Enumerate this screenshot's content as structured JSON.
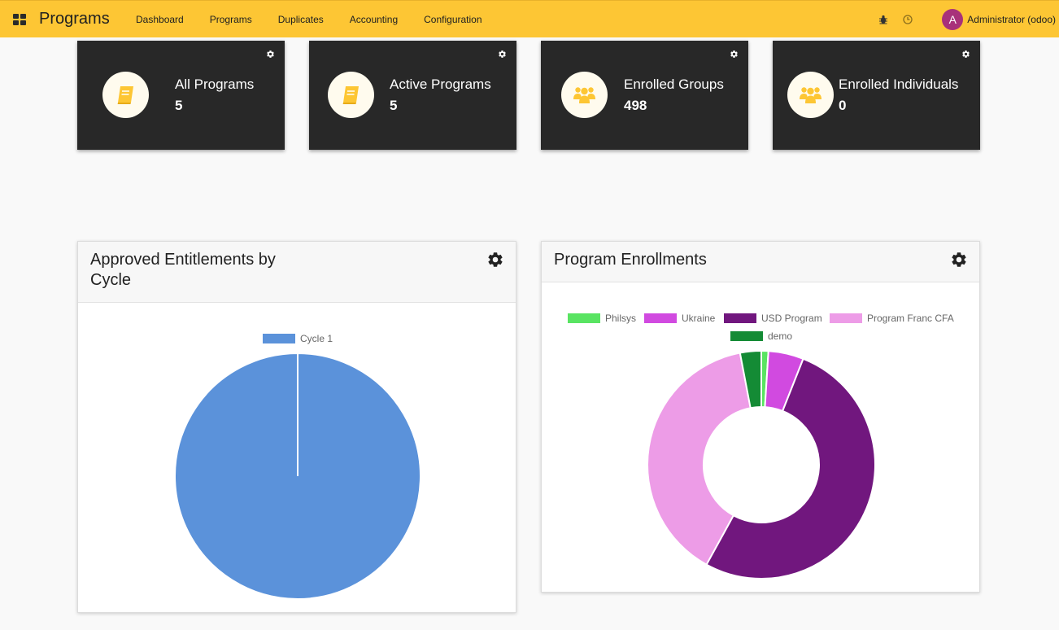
{
  "header": {
    "brand": "Programs",
    "menu": [
      "Dashboard",
      "Programs",
      "Duplicates",
      "Accounting",
      "Configuration"
    ],
    "user_initial": "A",
    "user_name": "Administrator (odoo)"
  },
  "cards": [
    {
      "label": "All Programs",
      "value": "5",
      "icon": "book-icon"
    },
    {
      "label": "Active Programs",
      "value": "5",
      "icon": "book-icon"
    },
    {
      "label": "Enrolled Groups",
      "value": "498",
      "icon": "users-icon"
    },
    {
      "label": "Enrolled Individuals",
      "value": "0",
      "icon": "users-icon"
    }
  ],
  "panels": {
    "entitlements": {
      "title_line1": "Approved Entitlements by",
      "title_line2": "Cycle"
    },
    "enrollments": {
      "title": "Program Enrollments"
    }
  },
  "colors": {
    "navbar": "#fdc634",
    "card_bg": "#282828",
    "icon_accent": "#fdc634",
    "avatar": "#a8317a"
  },
  "chart_data": [
    {
      "type": "pie",
      "title": "",
      "legend_position": "top",
      "categories": [
        "Cycle 1"
      ],
      "values": [
        100
      ],
      "colors": [
        "#5b92da"
      ]
    },
    {
      "type": "pie",
      "variant": "doughnut",
      "title": "",
      "legend_position": "top",
      "categories": [
        "Philsys",
        "Ukraine",
        "USD Program",
        "Program Franc CFA",
        "demo"
      ],
      "values": [
        1,
        5,
        52,
        39,
        3
      ],
      "colors": [
        "#59e462",
        "#d14ae0",
        "#71177e",
        "#ed9ce7",
        "#148b35"
      ]
    }
  ]
}
